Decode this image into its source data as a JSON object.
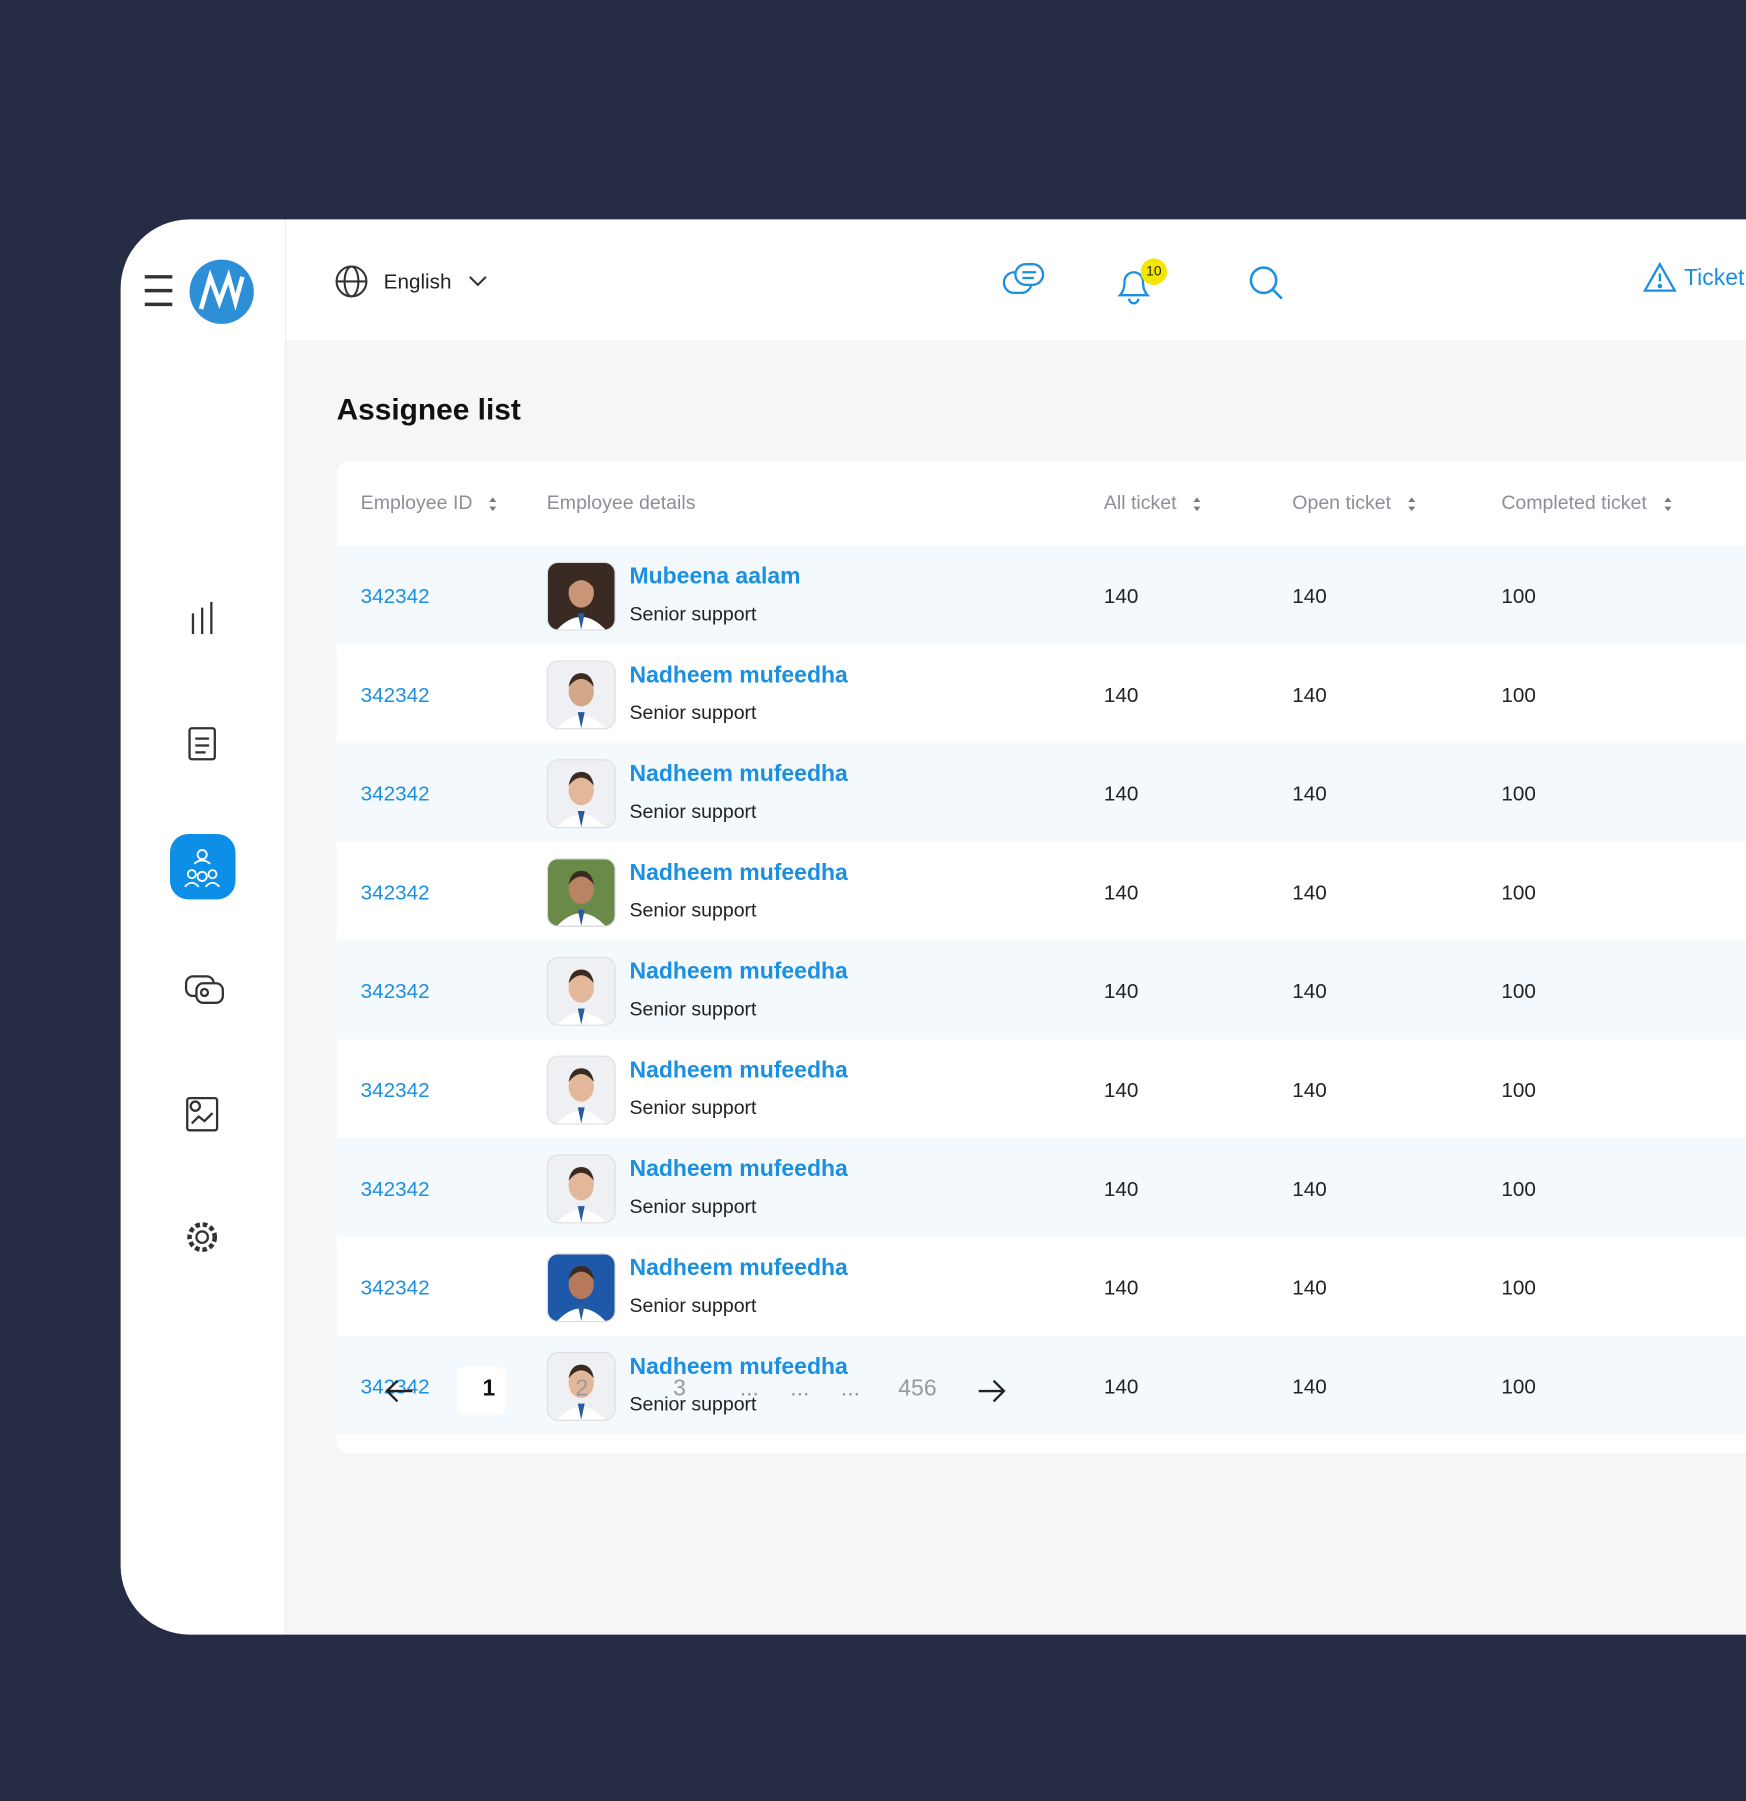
{
  "header": {
    "language": "English",
    "notification_count": 10,
    "ticket_button": "Ticket"
  },
  "page_title": "Assignee list",
  "table": {
    "columns": [
      "Employee ID",
      "Employee details",
      "All ticket",
      "Open ticket",
      "Completed ticket"
    ],
    "rows": [
      {
        "id": "342342",
        "name": "Mubeena aalam",
        "role": "Senior support",
        "all": 140,
        "open": 140,
        "completed": 100
      },
      {
        "id": "342342",
        "name": "Nadheem mufeedha",
        "role": "Senior support",
        "all": 140,
        "open": 140,
        "completed": 100
      },
      {
        "id": "342342",
        "name": "Nadheem mufeedha",
        "role": "Senior support",
        "all": 140,
        "open": 140,
        "completed": 100
      },
      {
        "id": "342342",
        "name": "Nadheem mufeedha",
        "role": "Senior support",
        "all": 140,
        "open": 140,
        "completed": 100
      },
      {
        "id": "342342",
        "name": "Nadheem mufeedha",
        "role": "Senior support",
        "all": 140,
        "open": 140,
        "completed": 100
      },
      {
        "id": "342342",
        "name": "Nadheem mufeedha",
        "role": "Senior support",
        "all": 140,
        "open": 140,
        "completed": 100
      },
      {
        "id": "342342",
        "name": "Nadheem mufeedha",
        "role": "Senior support",
        "all": 140,
        "open": 140,
        "completed": 100
      },
      {
        "id": "342342",
        "name": "Nadheem mufeedha",
        "role": "Senior support",
        "all": 140,
        "open": 140,
        "completed": 100
      },
      {
        "id": "342342",
        "name": "Nadheem mufeedha",
        "role": "Senior support",
        "all": 140,
        "open": 140,
        "completed": 100
      }
    ]
  },
  "pagination": [
    "1",
    "2",
    "3",
    "...",
    "...",
    "...",
    "456"
  ]
}
